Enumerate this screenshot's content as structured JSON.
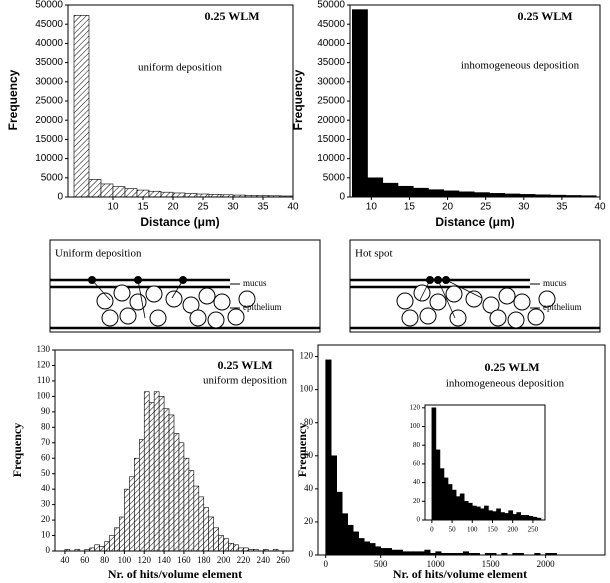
{
  "chart_data": [
    {
      "type": "histogram",
      "xlabel": "Distance (μm)",
      "ylabel": "Frequency",
      "annotations": [
        "0.25 WLM",
        "uniform deposition"
      ],
      "bins": [
        3.5,
        6,
        8,
        10,
        12,
        14,
        16,
        18,
        20,
        22,
        24,
        26,
        28,
        30,
        32,
        34,
        36,
        38,
        40
      ],
      "values": [
        47300,
        4600,
        3400,
        2700,
        2200,
        1800,
        1500,
        1250,
        1050,
        900,
        780,
        680,
        580,
        500,
        430,
        370,
        320,
        270
      ],
      "xlim": [
        2.5,
        40
      ],
      "ylim": [
        0,
        50000
      ],
      "xticks": [
        10,
        15,
        20,
        25,
        30,
        35,
        40
      ],
      "yticks": [
        0,
        5000,
        10000,
        15000,
        20000,
        25000,
        30000,
        35000,
        40000,
        45000,
        50000
      ],
      "color": "#000000",
      "pattern": "hatch"
    },
    {
      "type": "histogram",
      "xlabel": "Distance (μm)",
      "ylabel": "Frequency",
      "annotations": [
        "0.25 WLM",
        "inhomogeneous deposition"
      ],
      "bins": [
        7.5,
        9.5,
        11.5,
        13.5,
        15.5,
        17.5,
        19.5,
        21.5,
        23.5,
        25.5,
        27.5,
        29.5,
        31.5,
        33.5,
        35.5,
        37.5,
        39.5
      ],
      "values": [
        48800,
        5000,
        3600,
        2800,
        2300,
        1900,
        1600,
        1350,
        1150,
        950,
        800,
        680,
        570,
        480,
        400,
        340
      ],
      "xlim": [
        7.2,
        40
      ],
      "ylim": [
        0,
        50000
      ],
      "xticks": [
        10,
        15,
        20,
        25,
        30,
        35,
        40
      ],
      "yticks": [
        0,
        5000,
        10000,
        15000,
        20000,
        25000,
        30000,
        35000,
        40000,
        45000,
        50000
      ],
      "color": "#000000",
      "pattern": "solid"
    },
    {
      "type": "histogram",
      "xlabel": "Nr. of hits/volume element",
      "ylabel": "Frequency",
      "annotations": [
        "0.25 WLM",
        "uniform deposition"
      ],
      "bins": [
        40,
        45,
        50,
        55,
        60,
        65,
        70,
        75,
        80,
        85,
        90,
        95,
        100,
        105,
        110,
        115,
        120,
        125,
        130,
        135,
        140,
        145,
        150,
        155,
        160,
        165,
        170,
        175,
        180,
        185,
        190,
        195,
        200,
        205,
        210,
        215,
        220,
        225,
        230,
        235,
        240,
        245,
        250,
        255,
        260
      ],
      "values": [
        1,
        0,
        1,
        0,
        1,
        2,
        4,
        3,
        6,
        10,
        15,
        22,
        40,
        48,
        60,
        72,
        103,
        96,
        103,
        100,
        92,
        88,
        76,
        70,
        60,
        52,
        42,
        35,
        28,
        22,
        15,
        10,
        8,
        5,
        4,
        2,
        2,
        1,
        1,
        0,
        1,
        0,
        1,
        0
      ],
      "xlim": [
        30,
        270
      ],
      "ylim": [
        0,
        130
      ],
      "xticks": [
        40,
        60,
        80,
        100,
        120,
        140,
        160,
        180,
        200,
        220,
        240,
        260
      ],
      "yticks": [
        0,
        10,
        20,
        30,
        40,
        50,
        60,
        70,
        80,
        90,
        100,
        110,
        120,
        130
      ],
      "color": "#000000",
      "pattern": "hatch"
    },
    {
      "type": "histogram",
      "xlabel": "Nr. of hits/volume element",
      "ylabel": "Frequency",
      "annotations": [
        "0.25 WLM",
        "inhomogeneous deposition"
      ],
      "bins": [
        0,
        50,
        100,
        150,
        200,
        250,
        300,
        350,
        400,
        450,
        500,
        550,
        600,
        650,
        700,
        750,
        800,
        850,
        900,
        950,
        1000,
        1050,
        1100,
        1150,
        1200,
        1250,
        1300,
        1350,
        1400,
        1450,
        1500,
        1550,
        1600,
        1650,
        1700,
        1750,
        1800,
        1850,
        1900,
        1950,
        2000,
        2050,
        2100
      ],
      "values": [
        118,
        60,
        38,
        25,
        18,
        14,
        10,
        8,
        7,
        5,
        4,
        4,
        3,
        3,
        2,
        2,
        2,
        2,
        3,
        1,
        2,
        1,
        1,
        1,
        1,
        2,
        1,
        1,
        0,
        1,
        1,
        0,
        1,
        0,
        1,
        1,
        0,
        0,
        1,
        0,
        1,
        1
      ],
      "xlim": [
        -70,
        2540
      ],
      "ylim": [
        0,
        127
      ],
      "xticks": [
        0,
        500,
        1000,
        1500,
        2000
      ],
      "yticks": [
        0,
        20,
        40,
        60,
        80,
        100,
        120
      ],
      "color": "#000000",
      "pattern": "solid"
    },
    {
      "type": "histogram",
      "bins": [
        0,
        10,
        20,
        30,
        40,
        50,
        60,
        70,
        80,
        90,
        100,
        110,
        120,
        130,
        140,
        150,
        160,
        170,
        180,
        190,
        200,
        210,
        220,
        230,
        240,
        250,
        260,
        270
      ],
      "values": [
        120,
        75,
        55,
        45,
        38,
        32,
        25,
        28,
        20,
        18,
        15,
        14,
        12,
        15,
        10,
        9,
        12,
        8,
        7,
        10,
        6,
        8,
        5,
        5,
        4,
        3,
        2
      ],
      "xlim": [
        -17,
        280
      ],
      "ylim": [
        0,
        123
      ],
      "xticks": [
        0,
        50,
        100,
        150,
        200,
        250
      ],
      "yticks": [
        0,
        20,
        40,
        60,
        80,
        100,
        120
      ],
      "color": "#000000",
      "pattern": "solid"
    }
  ],
  "diagrams": [
    {
      "title": "Uniform deposition",
      "mucus": "mucus",
      "epithelium": "epithelium"
    },
    {
      "title": "Hot spot",
      "mucus": "mucus",
      "epithelium": "epithelium"
    }
  ]
}
